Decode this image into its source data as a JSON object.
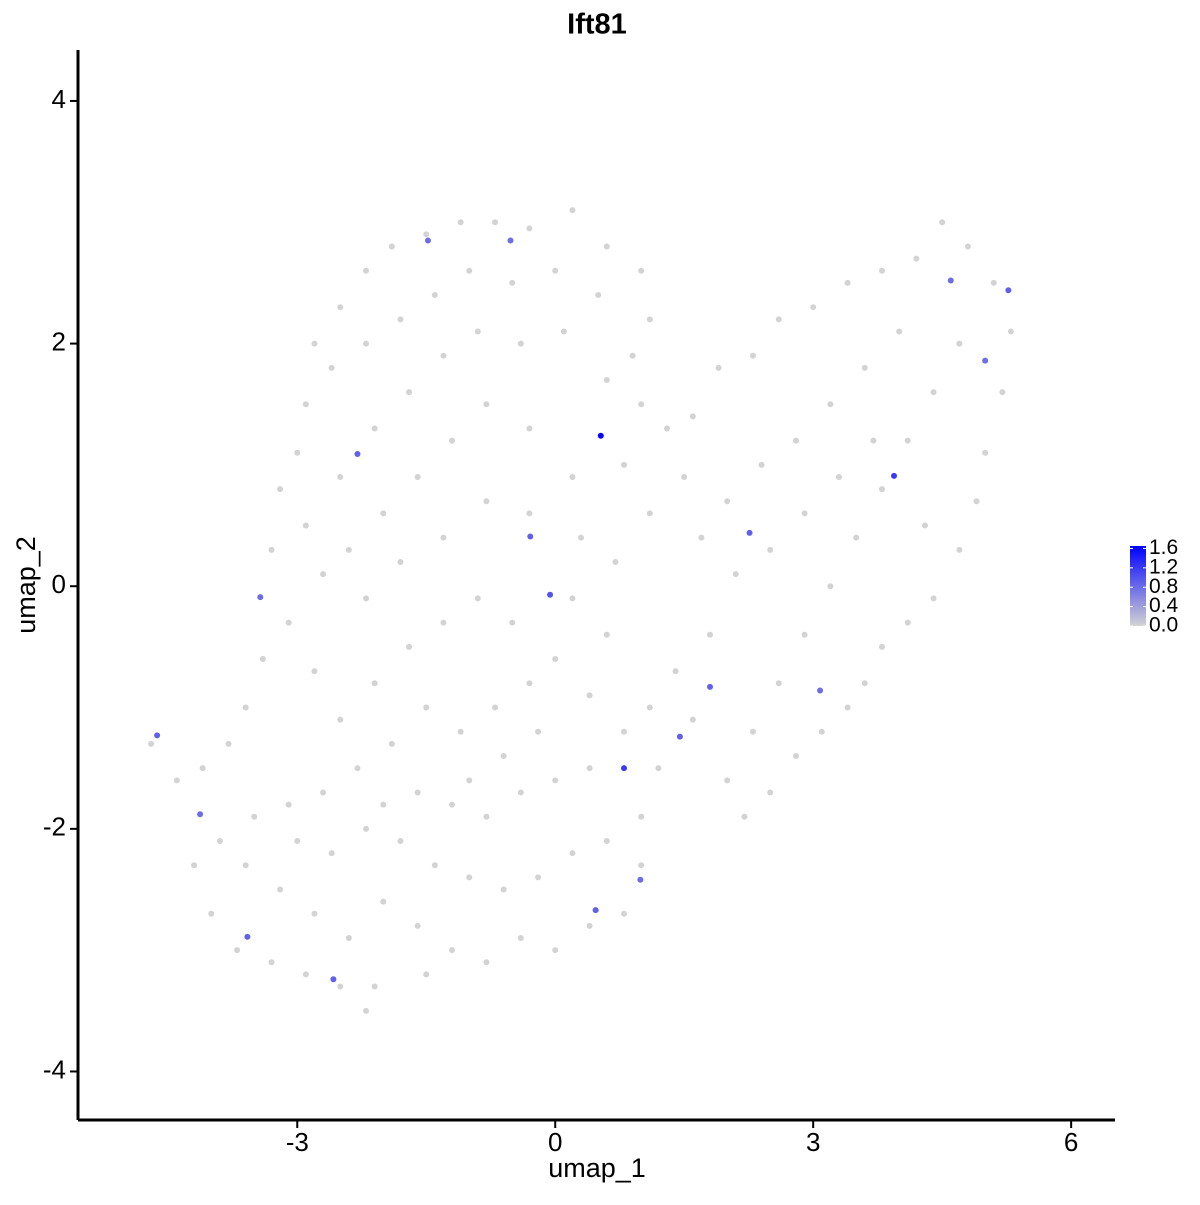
{
  "chart_data": {
    "type": "scatter",
    "title": "Ift81",
    "x_label": "umap_1",
    "y_label": "umap_2",
    "xlim": [
      -5.55,
      6.51
    ],
    "ylim": [
      -4.4,
      4.42
    ],
    "xticks": [
      -3,
      0,
      3,
      6
    ],
    "yticks": [
      -4,
      -2,
      0,
      2,
      4
    ],
    "grid": false,
    "color_low": "#d3d3d3",
    "color_high": "#0000ff",
    "color_lim": [
      0,
      1.65
    ],
    "color_ticks": [
      {
        "value": 0,
        "label": "0.0"
      },
      0.4,
      0.8,
      1.2,
      1.6
    ],
    "x": [
      -2.8,
      -2.5,
      -2.2,
      -1.9,
      -1.5,
      -1.1,
      -0.7,
      -0.3,
      0.2,
      0.6,
      1.0,
      1.1,
      0.9,
      0.5,
      0.0,
      -0.5,
      -1.0,
      -1.4,
      -1.8,
      -2.2,
      -2.6,
      -2.9,
      -3.0,
      -3.2,
      -3.3,
      -2.9,
      -2.5,
      -2.1,
      -1.7,
      -1.3,
      -0.9,
      -0.4,
      0.1,
      0.6,
      1.0,
      1.3,
      0.8,
      0.2,
      -0.3,
      -0.8,
      -1.2,
      -1.6,
      -2.0,
      -2.4,
      -2.7,
      -2.2,
      -1.8,
      -1.3,
      -0.8,
      -0.3,
      0.3,
      0.7,
      1.1,
      1.5,
      1.7,
      1.6,
      1.9,
      2.3,
      2.6,
      3.0,
      3.4,
      3.8,
      4.2,
      4.5,
      4.8,
      5.1,
      5.3,
      5.2,
      5.0,
      4.9,
      4.7,
      4.4,
      4.1,
      3.8,
      3.6,
      3.4,
      3.1,
      2.8,
      2.5,
      2.2,
      2.0,
      2.3,
      2.6,
      2.9,
      3.2,
      3.5,
      3.8,
      4.1,
      4.4,
      4.7,
      4.0,
      3.6,
      3.2,
      2.8,
      2.4,
      2.0,
      2.1,
      2.5,
      2.9,
      3.3,
      3.7,
      4.3,
      1.8,
      1.4,
      1.6,
      1.2,
      1.0,
      -4.7,
      -4.4,
      -4.1,
      -3.8,
      -3.6,
      -3.4,
      -3.1,
      -2.8,
      -2.5,
      -2.1,
      -1.7,
      -1.3,
      -0.9,
      -0.5,
      0.0,
      0.4,
      0.8,
      1.1,
      0.6,
      0.2,
      -0.3,
      -0.7,
      -1.1,
      -1.5,
      -1.9,
      -2.3,
      -2.7,
      -3.1,
      -3.5,
      -3.9,
      -4.2,
      -4.0,
      -3.7,
      -3.3,
      -2.9,
      -2.5,
      -2.1,
      -2.4,
      -2.8,
      -3.2,
      -3.6,
      -2.0,
      -1.6,
      -1.2,
      -0.8,
      -0.4,
      0.0,
      0.4,
      0.8,
      1.0,
      0.6,
      0.2,
      -0.2,
      -0.6,
      -1.0,
      -1.4,
      -1.8,
      -2.2,
      -2.6,
      -3.0,
      -1.6,
      -1.2,
      -0.8,
      -0.4,
      0.0,
      0.4,
      -0.2,
      -0.6,
      -1.0,
      -2.0,
      -1.5,
      -2.2,
      -4.63,
      0.53,
      0.8,
      3.94,
      5.27,
      2.26,
      1.8,
      -2.58,
      -3.58,
      -0.06,
      -0.29,
      -2.3,
      -1.48,
      -0.52,
      1.45,
      0.99,
      0.47,
      -4.13,
      4.6,
      5.0,
      3.08,
      -3.43
    ],
    "y": [
      2.0,
      2.3,
      2.6,
      2.8,
      2.9,
      3.0,
      3.0,
      2.95,
      3.1,
      2.8,
      2.6,
      2.2,
      1.9,
      2.4,
      2.6,
      2.5,
      2.6,
      2.4,
      2.2,
      2.0,
      1.8,
      1.5,
      1.1,
      0.8,
      0.3,
      0.5,
      0.9,
      1.3,
      1.6,
      1.9,
      2.1,
      2.0,
      2.1,
      1.7,
      1.5,
      1.3,
      1.0,
      0.9,
      1.3,
      1.5,
      1.2,
      0.9,
      0.6,
      0.3,
      0.1,
      -0.1,
      0.2,
      0.4,
      0.7,
      0.6,
      0.4,
      0.2,
      0.6,
      0.9,
      0.4,
      1.4,
      1.8,
      1.9,
      2.2,
      2.3,
      2.5,
      2.6,
      2.7,
      3.0,
      2.8,
      2.5,
      2.1,
      1.6,
      1.1,
      0.7,
      0.3,
      -0.1,
      -0.3,
      -0.5,
      -0.8,
      -1.0,
      -1.2,
      -1.4,
      -1.7,
      -1.9,
      -1.6,
      -1.2,
      -0.8,
      -0.4,
      0.0,
      0.4,
      0.8,
      1.2,
      1.6,
      2.0,
      2.1,
      1.8,
      1.5,
      1.2,
      1.0,
      0.7,
      0.1,
      0.3,
      0.6,
      0.9,
      1.2,
      0.5,
      -0.4,
      -0.7,
      -1.1,
      -1.5,
      -1.9,
      -1.3,
      -1.6,
      -1.5,
      -1.3,
      -1.0,
      -0.6,
      -0.3,
      -0.7,
      -1.1,
      -0.8,
      -0.5,
      -0.3,
      -0.1,
      -0.3,
      -0.6,
      -0.9,
      -1.2,
      -1.0,
      -0.4,
      -0.1,
      -0.8,
      -1.0,
      -1.2,
      -1.0,
      -1.3,
      -1.5,
      -1.7,
      -1.8,
      -1.9,
      -2.1,
      -2.3,
      -2.7,
      -3.0,
      -3.1,
      -3.2,
      -3.3,
      -3.3,
      -2.9,
      -2.7,
      -2.5,
      -2.3,
      -2.6,
      -2.8,
      -3.0,
      -3.1,
      -2.9,
      -3.0,
      -2.8,
      -2.7,
      -2.3,
      -2.1,
      -2.2,
      -2.4,
      -2.5,
      -2.4,
      -2.3,
      -2.1,
      -2.0,
      -2.2,
      -2.1,
      -1.7,
      -1.8,
      -1.9,
      -1.7,
      -1.6,
      -1.5,
      -1.2,
      -1.4,
      -1.6,
      -1.8,
      -3.2,
      -3.5,
      -1.23,
      1.24,
      -1.5,
      0.91,
      2.44,
      0.44,
      -0.83,
      -3.24,
      -2.89,
      -0.07,
      0.41,
      1.09,
      2.85,
      2.85,
      -1.24,
      -2.42,
      -2.67,
      -1.88,
      2.52,
      1.86,
      -0.86,
      -0.09
    ],
    "values": [
      0,
      0,
      0,
      0,
      0,
      0,
      0,
      0,
      0,
      0,
      0,
      0,
      0,
      0,
      0,
      0,
      0,
      0,
      0,
      0,
      0,
      0,
      0,
      0,
      0,
      0,
      0,
      0,
      0,
      0,
      0,
      0,
      0,
      0,
      0,
      0,
      0,
      0,
      0,
      0,
      0,
      0,
      0,
      0,
      0,
      0,
      0,
      0,
      0,
      0,
      0,
      0,
      0,
      0,
      0,
      0,
      0,
      0,
      0,
      0,
      0,
      0,
      0,
      0,
      0,
      0,
      0,
      0,
      0,
      0,
      0,
      0,
      0,
      0,
      0,
      0,
      0,
      0,
      0,
      0,
      0,
      0,
      0,
      0,
      0,
      0,
      0,
      0,
      0,
      0,
      0,
      0,
      0,
      0,
      0,
      0,
      0,
      0,
      0,
      0,
      0,
      0,
      0,
      0,
      0,
      0,
      0,
      0,
      0,
      0,
      0,
      0,
      0,
      0,
      0,
      0,
      0,
      0,
      0,
      0,
      0,
      0,
      0,
      0,
      0,
      0,
      0,
      0,
      0,
      0,
      0,
      0,
      0,
      0,
      0,
      0,
      0,
      0,
      0,
      0,
      0,
      0,
      0,
      0,
      0,
      0,
      0,
      0,
      0,
      0,
      0,
      0,
      0,
      0,
      0,
      0,
      0,
      0,
      0,
      0,
      0,
      0,
      0,
      0,
      0,
      0,
      0,
      0,
      0,
      0,
      0,
      0,
      0,
      0,
      0,
      0,
      0,
      0,
      0,
      0.9,
      1.6,
      1.2,
      1.2,
      0.9,
      0.9,
      0.9,
      0.9,
      0.9,
      1.0,
      0.9,
      0.9,
      0.8,
      0.8,
      0.9,
      0.8,
      0.9,
      0.8,
      0.8,
      0.8,
      0.8,
      0.8
    ]
  }
}
